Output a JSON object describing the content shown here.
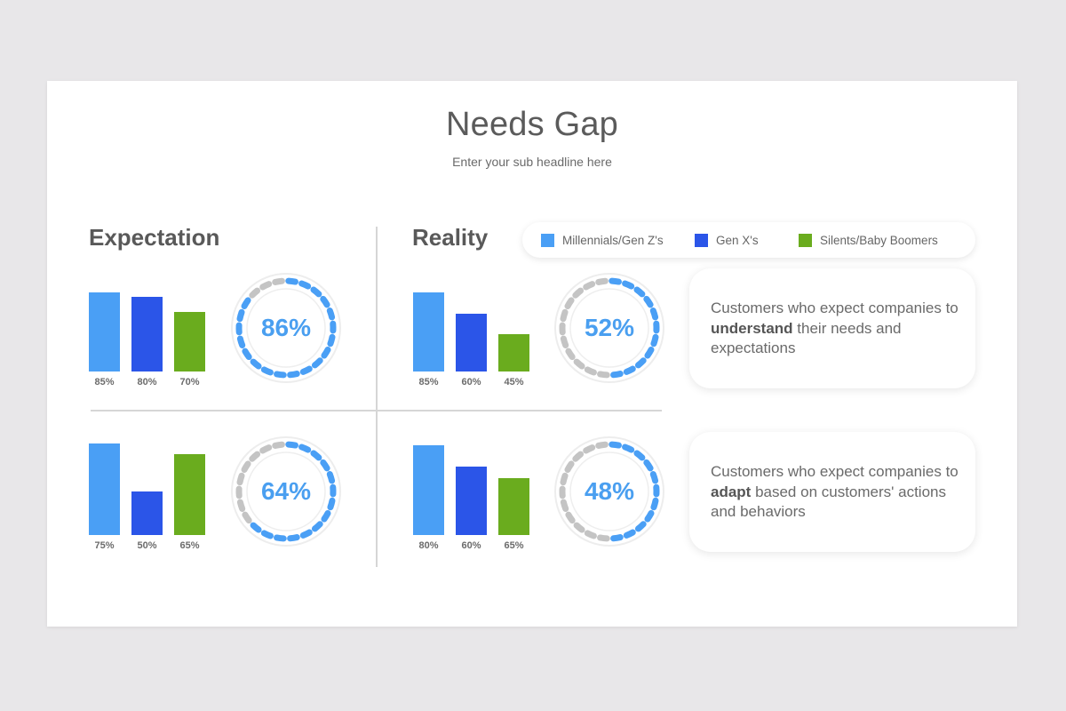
{
  "header": {
    "title": "Needs Gap",
    "subtitle": "Enter your sub headline here"
  },
  "sections": {
    "expectation": "Expectation",
    "reality": "Reality"
  },
  "legend": [
    {
      "label": "Millennials/Gen Z's",
      "color": "#4a9ff5"
    },
    {
      "label": "Gen X's",
      "color": "#2b55e8"
    },
    {
      "label": "Silents/Baby Boomers",
      "color": "#6aac1e"
    }
  ],
  "colors": {
    "millennials": "#4a9ff5",
    "genx": "#2b55e8",
    "boomers": "#6aac1e",
    "ring_active": "#4a9ff5",
    "ring_inactive": "#c4c4c4"
  },
  "panels": {
    "exp_understand": {
      "bars": [
        "85%",
        "80%",
        "70%"
      ],
      "ring": "86%"
    },
    "real_understand": {
      "bars": [
        "85%",
        "60%",
        "45%"
      ],
      "ring": "52%"
    },
    "exp_adapt": {
      "bars": [
        "75%",
        "50%",
        "65%"
      ],
      "ring": "64%"
    },
    "real_adapt": {
      "bars": [
        "80%",
        "60%",
        "65%"
      ],
      "ring": "48%"
    }
  },
  "cards": {
    "understand": {
      "pre": "Customers who expect companies to ",
      "bold": "understand",
      "post": " their needs and expectations"
    },
    "adapt": {
      "pre": "Customers who expect companies to ",
      "bold": "adapt",
      "post": " based on customers' actions and behaviors"
    }
  },
  "chart_data": [
    {
      "type": "bar",
      "title": "Expectation — understand needs",
      "categories": [
        "Millennials/Gen Z's",
        "Gen X's",
        "Silents/Baby Boomers"
      ],
      "values": [
        85,
        80,
        70
      ],
      "summary_donut": 86,
      "unit": "%"
    },
    {
      "type": "bar",
      "title": "Reality — understand needs",
      "categories": [
        "Millennials/Gen Z's",
        "Gen X's",
        "Silents/Baby Boomers"
      ],
      "values": [
        85,
        60,
        45
      ],
      "summary_donut": 52,
      "unit": "%"
    },
    {
      "type": "bar",
      "title": "Expectation — adapt to behaviors",
      "categories": [
        "Millennials/Gen Z's",
        "Gen X's",
        "Silents/Baby Boomers"
      ],
      "values": [
        75,
        50,
        65
      ],
      "summary_donut": 64,
      "unit": "%"
    },
    {
      "type": "bar",
      "title": "Reality — adapt to behaviors",
      "categories": [
        "Millennials/Gen Z's",
        "Gen X's",
        "Silents/Baby Boomers"
      ],
      "values": [
        80,
        60,
        65
      ],
      "summary_donut": 48,
      "unit": "%"
    }
  ]
}
